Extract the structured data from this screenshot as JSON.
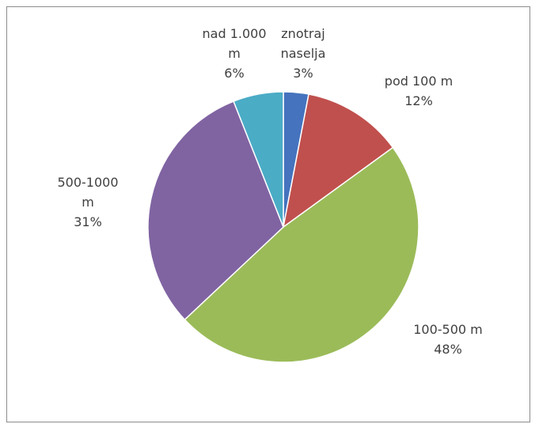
{
  "chart_data": {
    "type": "pie",
    "start_angle_deg": 0,
    "direction": "clockwise",
    "legend": "none",
    "slices": [
      {
        "label": [
          "znotraj",
          "naselja"
        ],
        "percent_label": "3%",
        "value": 3,
        "color": "#4573BE"
      },
      {
        "label": [
          "pod 100 m"
        ],
        "percent_label": "12%",
        "value": 12,
        "color": "#C0504D"
      },
      {
        "label": [
          "100-500 m"
        ],
        "percent_label": "48%",
        "value": 48,
        "color": "#9BBB59"
      },
      {
        "label": [
          "500-1000",
          "m"
        ],
        "percent_label": "31%",
        "value": 31,
        "color": "#8064A2"
      },
      {
        "label": [
          "nad 1.000",
          "m"
        ],
        "percent_label": "6%",
        "value": 6,
        "color": "#4BACC6"
      }
    ]
  }
}
